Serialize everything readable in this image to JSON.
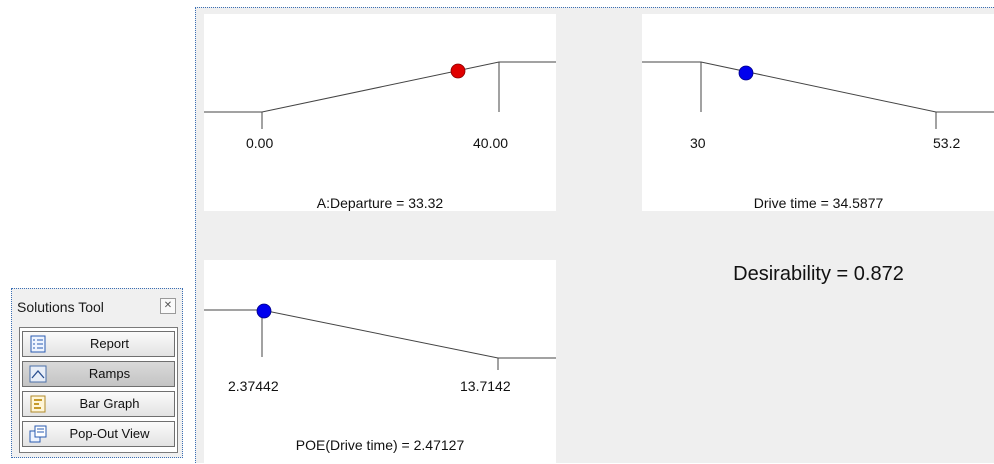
{
  "solutions_tool": {
    "title": "Solutions Tool",
    "buttons": [
      {
        "label": "Report",
        "icon": "report-icon"
      },
      {
        "label": "Ramps",
        "icon": "ramps-icon",
        "active": true
      },
      {
        "label": "Bar Graph",
        "icon": "bar-graph-icon"
      },
      {
        "label": "Pop-Out View",
        "icon": "pop-out-icon"
      }
    ]
  },
  "ramps": [
    {
      "id": "departure",
      "low_label": "0.00",
      "high_label": "40.00",
      "caption": "A:Departure = 33.32",
      "dot_color": "#e00000"
    },
    {
      "id": "drive-time",
      "low_label": "30",
      "high_label": "53.2",
      "caption": "Drive time = 34.5877",
      "dot_color": "#0000ee"
    },
    {
      "id": "poe",
      "low_label": "2.37442",
      "high_label": "13.7142",
      "caption": "POE(Drive time) = 2.47127",
      "dot_color": "#0000ee"
    }
  ],
  "desirability": "Desirability = 0.872"
}
